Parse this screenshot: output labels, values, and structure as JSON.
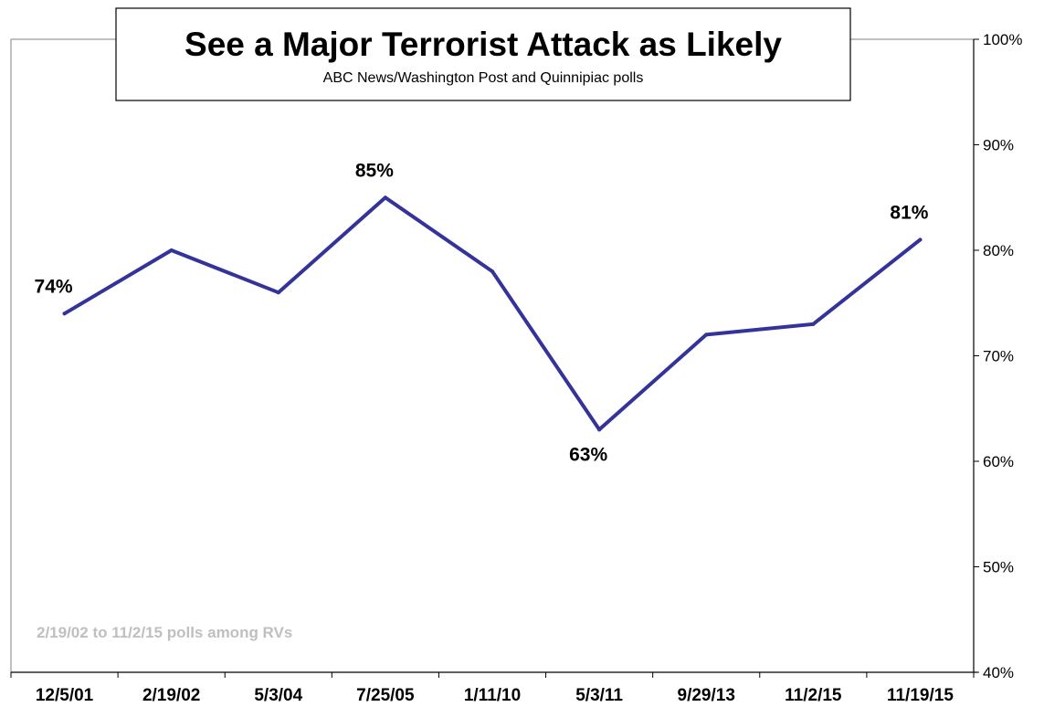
{
  "chart_data": {
    "type": "line",
    "title": "See a Major Terrorist Attack as Likely",
    "subtitle": "ABC News/Washington  Post and Quinnipiac polls",
    "note": "2/19/02 to 11/2/15 polls among RVs",
    "categories": [
      "12/5/01",
      "2/19/02",
      "5/3/04",
      "7/25/05",
      "1/11/10",
      "5/3/11",
      "9/29/13",
      "11/2/15",
      "11/19/15"
    ],
    "series": [
      {
        "values": [
          74,
          80,
          76,
          85,
          78,
          63,
          72,
          73,
          81
        ]
      }
    ],
    "data_labels": [
      {
        "index": 0,
        "text": "74%",
        "placement": "above"
      },
      {
        "index": 3,
        "text": "85%",
        "placement": "above"
      },
      {
        "index": 5,
        "text": "63%",
        "placement": "below"
      },
      {
        "index": 8,
        "text": "81%",
        "placement": "above"
      }
    ],
    "y_ticks": [
      40,
      50,
      60,
      70,
      80,
      90,
      100
    ],
    "y_tick_labels": [
      "40%",
      "50%",
      "60%",
      "70%",
      "80%",
      "90%",
      "100%"
    ],
    "ylim": [
      40,
      100
    ],
    "y_axis_side": "right",
    "grid": false,
    "legend": "none",
    "colors": {
      "line": "#333399",
      "axis": "#000000",
      "frame": "#808080",
      "note": "#BFBFBF"
    }
  }
}
